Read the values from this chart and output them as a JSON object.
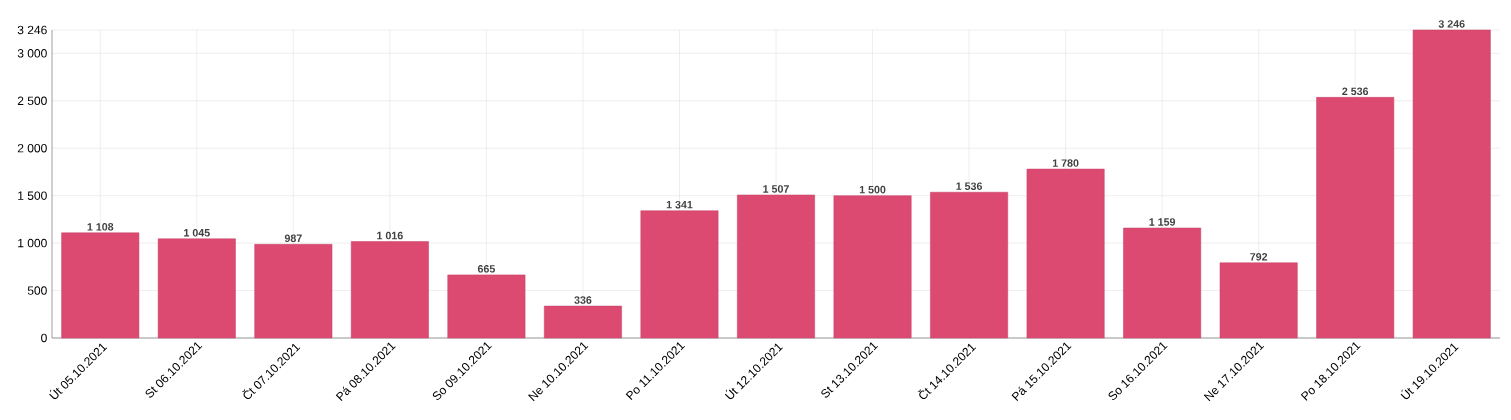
{
  "chart_data": {
    "type": "bar",
    "categories": [
      "Út 05.10.2021",
      "St 06.10.2021",
      "Čt 07.10.2021",
      "Pá 08.10.2021",
      "So 09.10.2021",
      "Ne 10.10.2021",
      "Po 11.10.2021",
      "Út 12.10.2021",
      "St 13.10.2021",
      "Čt 14.10.2021",
      "Pá 15.10.2021",
      "So 16.10.2021",
      "Ne 17.10.2021",
      "Po 18.10.2021",
      "Út 19.10.2021"
    ],
    "values": [
      1108,
      1045,
      987,
      1016,
      665,
      336,
      1341,
      1507,
      1500,
      1536,
      1780,
      1159,
      792,
      2536,
      3246
    ],
    "value_labels": [
      "1 108",
      "1 045",
      "987",
      "1 016",
      "665",
      "336",
      "1 341",
      "1 507",
      "1 500",
      "1 536",
      "1 780",
      "1 159",
      "792",
      "2 536",
      "3 246"
    ],
    "color": "#dc4a72",
    "ylim": [
      0,
      3246
    ],
    "yticks": [
      0,
      500,
      {
        "value": 1000,
        "label": "1 000"
      },
      {
        "value": 1500,
        "label": "1 500"
      },
      {
        "value": 2000,
        "label": "2 000"
      },
      {
        "value": 2500,
        "label": "2 500"
      },
      {
        "value": 3000,
        "label": "3 000"
      },
      {
        "value": 3246,
        "label": "3 246"
      }
    ],
    "grid": true
  }
}
